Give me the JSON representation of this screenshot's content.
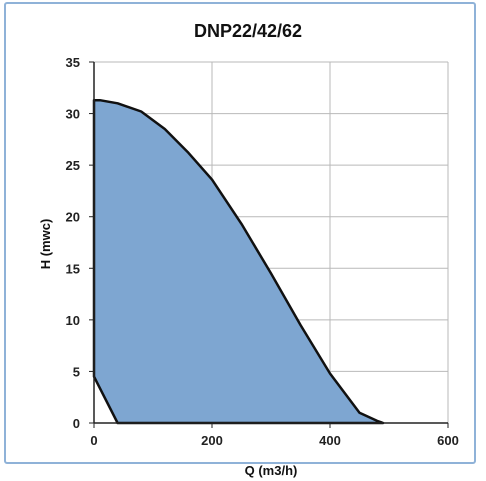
{
  "chart_data": {
    "type": "area",
    "title": "DNP22/42/62",
    "xlabel": "Q (m3/h)",
    "ylabel": "H (mwc)",
    "xlim": [
      0,
      600
    ],
    "ylim": [
      0,
      35
    ],
    "x_ticks": [
      0,
      200,
      400,
      600
    ],
    "y_ticks": [
      0,
      5,
      10,
      15,
      20,
      25,
      30,
      35
    ],
    "grid": true,
    "legend": "none",
    "fill_color": "#7ea6d1",
    "line_color": "#111111",
    "series": [
      {
        "x": [
          40,
          0,
          0,
          10,
          40,
          80,
          120,
          160,
          200,
          250,
          300,
          350,
          400,
          450,
          480,
          490,
          40
        ],
        "y": [
          0,
          4.5,
          31.3,
          31.3,
          31.0,
          30.2,
          28.5,
          26.2,
          23.6,
          19.3,
          14.5,
          9.5,
          4.8,
          1.0,
          0.2,
          0,
          0
        ]
      }
    ]
  }
}
